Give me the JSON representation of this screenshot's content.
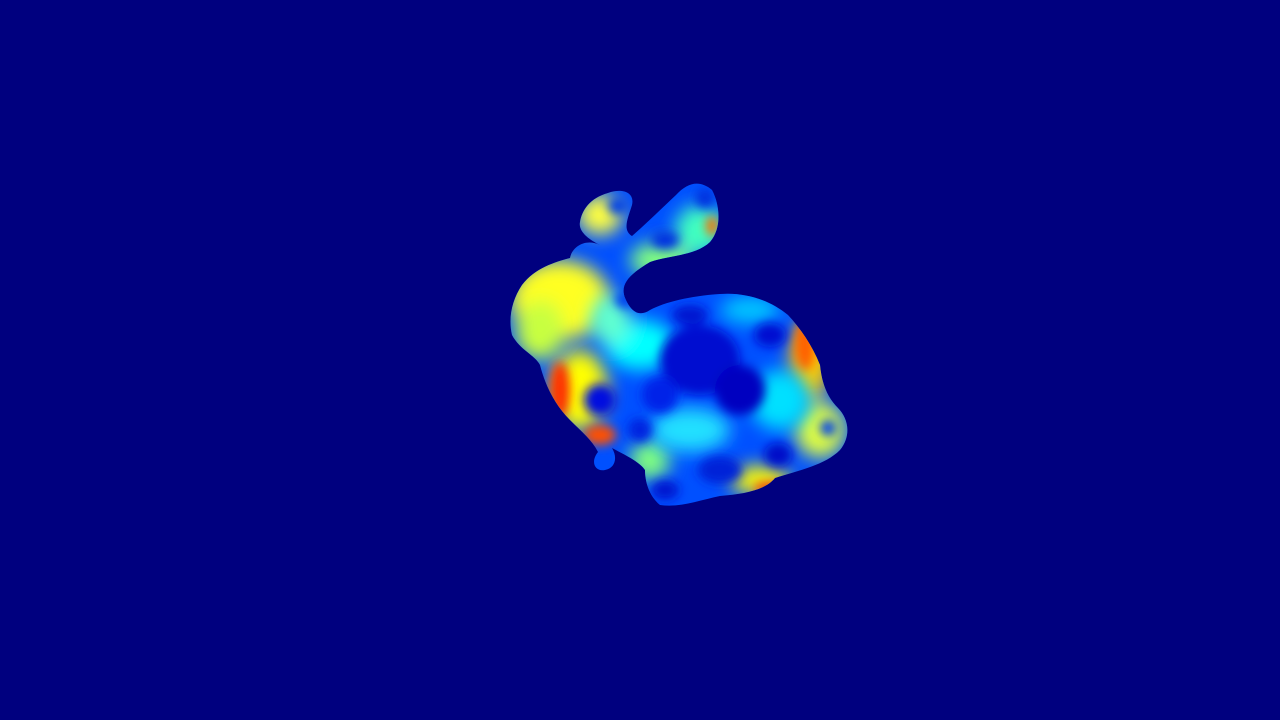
{
  "scene": {
    "background_color": "#00007f",
    "model": "bunny-model",
    "colormap": [
      "#00008f",
      "#0020ff",
      "#00a0ff",
      "#00ffff",
      "#80ff80",
      "#ffff00",
      "#ff8000",
      "#ff0000"
    ]
  }
}
